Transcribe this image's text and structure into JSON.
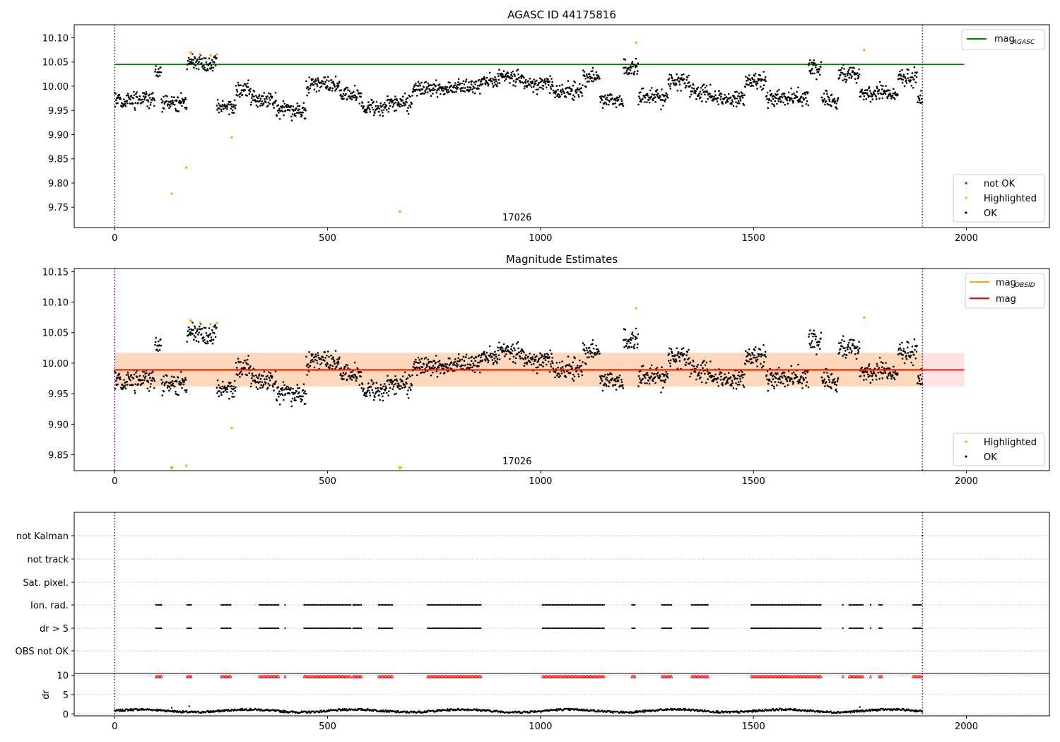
{
  "chart_data": [
    {
      "type": "scatter",
      "title": "AGASC ID 44175816",
      "xlim": [
        -95,
        2195
      ],
      "ylim": [
        9.708,
        10.127
      ],
      "xticks": [
        0,
        500,
        1000,
        1500,
        2000
      ],
      "xtick_labels": [
        "0",
        "500",
        "1000",
        "1500",
        "2000"
      ],
      "yticks": [
        9.75,
        9.8,
        9.85,
        9.9,
        9.95,
        10.0,
        10.05,
        10.1
      ],
      "ytick_labels": [
        "9.75",
        "9.80",
        "9.85",
        "9.90",
        "9.95",
        "10.00",
        "10.05",
        "10.10"
      ],
      "obsid_label": "17026",
      "obsid_label_x": 945,
      "vlines": [
        0,
        1897
      ],
      "mag_agasc": 10.045,
      "mag_agasc_xrange": [
        0,
        1995
      ],
      "ok_series_seed": 17026,
      "n_points": 1897,
      "level_segments": [
        {
          "x": [
            0,
            95
          ],
          "y": 9.972
        },
        {
          "x": [
            95,
            110
          ],
          "y": 10.03
        },
        {
          "x": [
            110,
            170
          ],
          "y": 9.968
        },
        {
          "x": [
            170,
            240
          ],
          "y": 10.048
        },
        {
          "x": [
            240,
            285
          ],
          "y": 9.958
        },
        {
          "x": [
            285,
            320
          ],
          "y": 9.99
        },
        {
          "x": [
            320,
            380
          ],
          "y": 9.972
        },
        {
          "x": [
            380,
            450
          ],
          "y": 9.95
        },
        {
          "x": [
            450,
            530
          ],
          "y": 10.005
        },
        {
          "x": [
            530,
            580
          ],
          "y": 9.98
        },
        {
          "x": [
            580,
            640
          ],
          "y": 9.955
        },
        {
          "x": [
            640,
            700
          ],
          "y": 9.965
        },
        {
          "x": [
            700,
            790
          ],
          "y": 9.995
        },
        {
          "x": [
            790,
            860
          ],
          "y": 10.0
        },
        {
          "x": [
            860,
            900
          ],
          "y": 10.01
        },
        {
          "x": [
            900,
            960
          ],
          "y": 10.02
        },
        {
          "x": [
            960,
            1030
          ],
          "y": 10.005
        },
        {
          "x": [
            1030,
            1100
          ],
          "y": 9.99
        },
        {
          "x": [
            1100,
            1140
          ],
          "y": 10.02
        },
        {
          "x": [
            1140,
            1195
          ],
          "y": 9.972
        },
        {
          "x": [
            1195,
            1230
          ],
          "y": 10.04
        },
        {
          "x": [
            1230,
            1300
          ],
          "y": 9.978
        },
        {
          "x": [
            1300,
            1350
          ],
          "y": 10.008
        },
        {
          "x": [
            1350,
            1400
          ],
          "y": 9.99
        },
        {
          "x": [
            1400,
            1480
          ],
          "y": 9.975
        },
        {
          "x": [
            1480,
            1530
          ],
          "y": 10.01
        },
        {
          "x": [
            1530,
            1630
          ],
          "y": 9.975
        },
        {
          "x": [
            1630,
            1660
          ],
          "y": 10.035
        },
        {
          "x": [
            1660,
            1700
          ],
          "y": 9.972
        },
        {
          "x": [
            1700,
            1750
          ],
          "y": 10.025
        },
        {
          "x": [
            1750,
            1840
          ],
          "y": 9.985
        },
        {
          "x": [
            1840,
            1885
          ],
          "y": 10.02
        },
        {
          "x": [
            1885,
            1897
          ],
          "y": 9.97
        }
      ],
      "highlighted": [
        {
          "x": 134,
          "y": 9.778
        },
        {
          "x": 168,
          "y": 9.832
        },
        {
          "x": 178,
          "y": 10.07
        },
        {
          "x": 180,
          "y": 10.068
        },
        {
          "x": 200,
          "y": 10.066
        },
        {
          "x": 225,
          "y": 10.064
        },
        {
          "x": 240,
          "y": 10.066
        },
        {
          "x": 275,
          "y": 9.894
        },
        {
          "x": 670,
          "y": 9.741
        },
        {
          "x": 1225,
          "y": 10.09
        },
        {
          "x": 1760,
          "y": 10.075
        }
      ],
      "legends": [
        {
          "position": "upper-right",
          "entries": [
            {
              "label_main": "mag",
              "label_sub": "AGASC",
              "color": "#008000",
              "marker": "line"
            }
          ]
        },
        {
          "position": "lower-right",
          "entries": [
            {
              "label": "not OK",
              "color": "#ff0000",
              "marker": "dot"
            },
            {
              "label": "Highlighted",
              "color": "#ffa500",
              "marker": "dot"
            },
            {
              "label": "OK",
              "color": "#000000",
              "marker": "dot"
            }
          ]
        }
      ]
    },
    {
      "type": "scatter",
      "title": "Magnitude Estimates",
      "xlim": [
        -95,
        2195
      ],
      "ylim": [
        9.824,
        10.155
      ],
      "xticks": [
        0,
        500,
        1000,
        1500,
        2000
      ],
      "xtick_labels": [
        "0",
        "500",
        "1000",
        "1500",
        "2000"
      ],
      "yticks": [
        9.85,
        9.9,
        9.95,
        10.0,
        10.05,
        10.1,
        10.15
      ],
      "ytick_labels": [
        "9.85",
        "9.90",
        "9.95",
        "10.00",
        "10.05",
        "10.10",
        "10.15"
      ],
      "obsid_label": "17026",
      "obsid_label_x": 945,
      "vlines": [
        0,
        1897
      ],
      "mag": 9.989,
      "mag_band": [
        9.962,
        10.017
      ],
      "mag_obsid": 9.989,
      "band_xrange": [
        0,
        1995
      ],
      "highlighted": [
        {
          "x": 178,
          "y": 10.07
        },
        {
          "x": 180,
          "y": 10.068
        },
        {
          "x": 200,
          "y": 10.066
        },
        {
          "x": 225,
          "y": 10.064
        },
        {
          "x": 240,
          "y": 10.066
        },
        {
          "x": 275,
          "y": 9.894
        },
        {
          "x": 168,
          "y": 9.832
        },
        {
          "x": 1225,
          "y": 10.09
        },
        {
          "x": 1760,
          "y": 10.075
        }
      ],
      "below_range_markers": [
        134,
        670
      ],
      "legends": [
        {
          "position": "upper-right",
          "entries": [
            {
              "label_main": "mag",
              "label_sub": "OBSID",
              "color": "#ffa500",
              "marker": "line"
            },
            {
              "label": "mag",
              "color": "#ff0000",
              "marker": "line"
            }
          ]
        },
        {
          "position": "lower-right",
          "entries": [
            {
              "label": "Highlighted",
              "color": "#ffa500",
              "marker": "dot"
            },
            {
              "label": "OK",
              "color": "#000000",
              "marker": "dot"
            }
          ]
        }
      ]
    },
    {
      "type": "scatter",
      "title": "",
      "xlim": [
        -95,
        2195
      ],
      "flag_rows": [
        "not Kalman",
        "not track",
        "Sat. pixel.",
        "Ion. rad.",
        "dr > 5",
        "OBS not OK"
      ],
      "vlines": [
        0,
        1897
      ],
      "flag_segments": [
        [
          97,
          110
        ],
        [
          170,
          182
        ],
        [
          250,
          275
        ],
        [
          340,
          385
        ],
        [
          400,
          402
        ],
        [
          445,
          555
        ],
        [
          560,
          580
        ],
        [
          620,
          655
        ],
        [
          735,
          860
        ],
        [
          1005,
          1150
        ],
        [
          1215,
          1222
        ],
        [
          1285,
          1310
        ],
        [
          1355,
          1395
        ],
        [
          1495,
          1660
        ],
        [
          1710,
          1712
        ],
        [
          1725,
          1760
        ],
        [
          1775,
          1777
        ],
        [
          1795,
          1802
        ],
        [
          1875,
          1897
        ]
      ],
      "not_kalman_points": [
        1897
      ]
    },
    {
      "type": "scatter",
      "title": "",
      "ylabel": "dr",
      "xlim": [
        -95,
        2195
      ],
      "ylim": [
        -0.5,
        10.5
      ],
      "xticks": [
        0,
        500,
        1000,
        1500,
        2000
      ],
      "xtick_labels": [
        "0",
        "500",
        "1000",
        "1500",
        "2000"
      ],
      "yticks": [
        0,
        5,
        10
      ],
      "ytick_labels": [
        "0",
        "5",
        "10"
      ],
      "vlines": [
        0,
        1897
      ],
      "dr_mean": 0.8,
      "outliers": [
        {
          "x": 134,
          "y": 1.6
        },
        {
          "x": 175,
          "y": 2.0
        },
        {
          "x": 1750,
          "y": 1.8
        }
      ],
      "clipped_markers_y": 9.7
    }
  ]
}
